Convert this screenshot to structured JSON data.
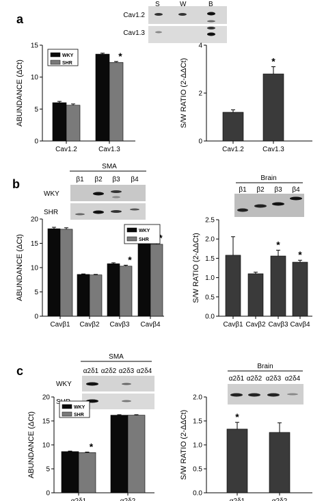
{
  "panels": {
    "a": "a",
    "b": "b",
    "c": "c"
  },
  "gels": {
    "a": {
      "lanes": [
        "S",
        "W",
        "B"
      ],
      "rows": [
        "Cav1.2",
        "Cav1.3"
      ]
    },
    "b_sma": {
      "title": "SMA",
      "lanes": [
        "β1",
        "β2",
        "β3",
        "β4"
      ],
      "rows": [
        "WKY",
        "SHR"
      ]
    },
    "b_brain": {
      "title": "Brain",
      "lanes": [
        "β1",
        "β2",
        "β3",
        "β4"
      ]
    },
    "c_sma": {
      "title": "SMA",
      "lanes": [
        "α2δ1",
        "α2δ2",
        "α2δ3",
        "α2δ4"
      ],
      "rows": [
        "WKY",
        "SHR"
      ]
    },
    "c_brain": {
      "title": "Brain",
      "lanes": [
        "α2δ1",
        "α2δ2",
        "α2δ3",
        "α2δ4"
      ]
    }
  },
  "colors": {
    "wky": "#0a0a0a",
    "shr": "#7a7a7a",
    "ratio": "#3a3a3a"
  },
  "chart_data": [
    {
      "id": "a-left",
      "type": "bar",
      "ylabel": "ABUNDANCE (ΔCt)",
      "categories": [
        "Cav1.2",
        "Cav1.3"
      ],
      "series": [
        {
          "name": "WKY",
          "values": [
            6.0,
            13.6
          ],
          "errors": [
            0.2,
            0.15
          ]
        },
        {
          "name": "SHR",
          "values": [
            5.6,
            12.3
          ],
          "errors": [
            0.2,
            0.15
          ]
        }
      ],
      "ylim": [
        0,
        15
      ],
      "yticks": [
        "0",
        "5",
        "10",
        "15"
      ],
      "significant": [
        [
          1,
          1
        ]
      ],
      "legend": "top-left"
    },
    {
      "id": "a-right",
      "type": "bar",
      "ylabel": "S/W RATIO (2-ΔΔCt)",
      "categories": [
        "Cav1.2",
        "Cav1.3"
      ],
      "series": [
        {
          "values": [
            1.2,
            2.8
          ],
          "errors": [
            0.1,
            0.3
          ]
        }
      ],
      "ylim": [
        0,
        4
      ],
      "yticks": [
        "0",
        "2",
        "4"
      ],
      "significant": [
        [
          0,
          1
        ]
      ]
    },
    {
      "id": "b-left",
      "type": "bar",
      "ylabel": "ABUNDANCE (ΔCt)",
      "categories": [
        "Cavβ1",
        "Cavβ2",
        "Cavβ3",
        "Cavβ4"
      ],
      "series": [
        {
          "name": "WKY",
          "values": [
            18.0,
            8.6,
            10.8,
            15.3
          ],
          "errors": [
            0.3,
            0.1,
            0.2,
            0.3
          ]
        },
        {
          "name": "SHR",
          "values": [
            17.9,
            8.5,
            10.3,
            14.8
          ],
          "errors": [
            0.3,
            0.1,
            0.2,
            0.2
          ]
        }
      ],
      "ylim": [
        0,
        20
      ],
      "yticks": [
        "0",
        "5",
        "10",
        "15",
        "20"
      ],
      "significant": [
        [
          1,
          2
        ],
        [
          1,
          3
        ]
      ],
      "legend": "top-right"
    },
    {
      "id": "b-right",
      "type": "bar",
      "ylabel": "S/W RATIO (2-ΔΔCt)",
      "categories": [
        "Cavβ1",
        "Cavβ2",
        "Cavβ3",
        "Cavβ4"
      ],
      "series": [
        {
          "values": [
            1.58,
            1.1,
            1.56,
            1.4
          ],
          "errors": [
            0.48,
            0.04,
            0.15,
            0.05
          ]
        }
      ],
      "ylim": [
        0,
        2.5
      ],
      "yticks": [
        "0.0",
        "0.5",
        "1.0",
        "1.5",
        "2.0",
        "2.5"
      ],
      "significant": [
        [
          0,
          2
        ],
        [
          0,
          3
        ]
      ]
    },
    {
      "id": "c-left",
      "type": "bar",
      "ylabel": "ABUNDANCE (ΔCt)",
      "categories": [
        "α2δ1",
        "α2δ2"
      ],
      "series": [
        {
          "name": "WKY",
          "values": [
            8.6,
            16.2
          ],
          "errors": [
            0.1,
            0.1
          ]
        },
        {
          "name": "SHR",
          "values": [
            8.4,
            16.2
          ],
          "errors": [
            0.1,
            0.1
          ]
        }
      ],
      "ylim": [
        0,
        20
      ],
      "yticks": [
        "0",
        "5",
        "10",
        "15",
        "20"
      ],
      "significant": [
        [
          1,
          0
        ]
      ],
      "legend": "top-left"
    },
    {
      "id": "c-right",
      "type": "bar",
      "ylabel": "S/W RATIO (2-ΔΔCt)",
      "categories": [
        "α2δ1",
        "α2δ2"
      ],
      "series": [
        {
          "values": [
            1.33,
            1.26
          ],
          "errors": [
            0.14,
            0.2
          ]
        }
      ],
      "ylim": [
        0,
        2.0
      ],
      "yticks": [
        "0.0",
        "0.5",
        "1.0",
        "1.5",
        "2.0"
      ],
      "significant": [
        [
          0,
          0
        ]
      ]
    }
  ]
}
